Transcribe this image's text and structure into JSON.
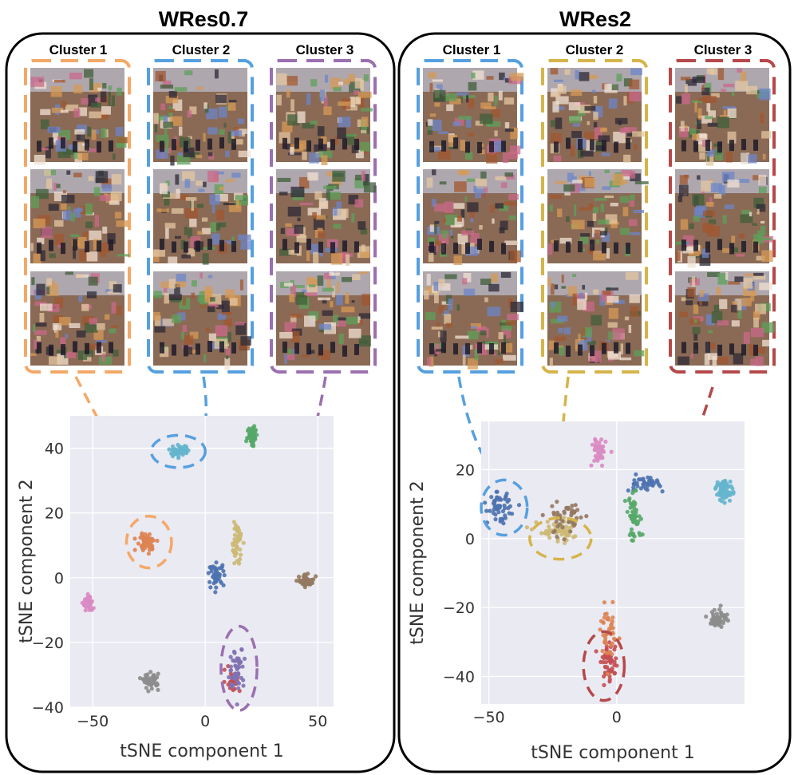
{
  "colors": {
    "plot_bg": "#eaeaf2",
    "grid": "#ffffff",
    "tab_blue": "#4c72b0",
    "tab_orange": "#dd8452",
    "tab_green": "#55a868",
    "tab_red": "#c44e52",
    "tab_purple": "#8172b3",
    "tab_brown": "#937860",
    "tab_pink": "#da8bc3",
    "tab_gray": "#8c8c8c",
    "tab_olive": "#ccb974",
    "tab_cyan": "#64b5cd"
  },
  "panels": [
    {
      "title": "WRes0.7",
      "cluster_labels": [
        "Cluster 1",
        "Cluster 2",
        "Cluster 3"
      ],
      "cluster_colors": [
        "#f4a868",
        "#56a0e0",
        "#9b6fb0"
      ],
      "image_icon": "synthesized-castle-image"
    },
    {
      "title": "WRes2",
      "cluster_labels": [
        "Cluster 1",
        "Cluster 2",
        "Cluster 3"
      ],
      "cluster_colors": [
        "#56a0e0",
        "#d6b44a",
        "#b5494a"
      ],
      "image_icon": "synthesized-castle-image"
    }
  ],
  "chart_data": [
    {
      "type": "scatter",
      "title": "WRes0.7",
      "xlabel": "tSNE component 1",
      "ylabel": "tSNE component 2",
      "xlim": [
        -60,
        57
      ],
      "ylim": [
        -40,
        50
      ],
      "xticks": [
        -50,
        0,
        50
      ],
      "xtick_labels": [
        "−50",
        "0",
        "50"
      ],
      "yticks": [
        -40,
        -20,
        0,
        20,
        40
      ],
      "ytick_labels": [
        "−40",
        "−20",
        "0",
        "20",
        "40"
      ],
      "grid": true,
      "clusters": [
        {
          "color": "tab_blue",
          "center": [
            5,
            1
          ],
          "spread": [
            3,
            3
          ],
          "count": 45
        },
        {
          "color": "tab_orange",
          "center": [
            -26,
            11
          ],
          "spread": [
            4,
            2.5
          ],
          "count": 55
        },
        {
          "color": "tab_green",
          "center": [
            21,
            44
          ],
          "spread": [
            2,
            3
          ],
          "count": 55
        },
        {
          "color": "tab_red",
          "center": [
            12,
            -32
          ],
          "spread": [
            3,
            3
          ],
          "count": 30
        },
        {
          "color": "tab_purple",
          "center": [
            14,
            -28
          ],
          "spread": [
            3,
            6
          ],
          "count": 55
        },
        {
          "color": "tab_brown",
          "center": [
            45,
            -1
          ],
          "spread": [
            3,
            1.5
          ],
          "count": 50
        },
        {
          "color": "tab_pink",
          "center": [
            -52,
            -8
          ],
          "spread": [
            2,
            2.5
          ],
          "count": 50
        },
        {
          "color": "tab_gray",
          "center": [
            -24,
            -32
          ],
          "spread": [
            3,
            2
          ],
          "count": 50
        },
        {
          "color": "tab_olive",
          "center": [
            14,
            11
          ],
          "spread": [
            2,
            6
          ],
          "count": 50
        },
        {
          "color": "tab_cyan",
          "center": [
            -12,
            39
          ],
          "spread": [
            4,
            1.5
          ],
          "count": 45
        }
      ],
      "highlight_ellipses": [
        {
          "cluster": "Cluster 2",
          "center": [
            -12,
            39
          ],
          "radii": [
            12,
            5
          ],
          "color": "#56a0e0"
        },
        {
          "cluster": "Cluster 1",
          "center": [
            -25,
            11
          ],
          "radii": [
            10,
            8
          ],
          "color": "#f4a868"
        },
        {
          "cluster": "Cluster 3",
          "center": [
            15,
            -28
          ],
          "radii": [
            8,
            13
          ],
          "color": "#9b6fb0"
        }
      ]
    },
    {
      "type": "scatter",
      "title": "WRes2",
      "xlabel": "tSNE component 1",
      "ylabel": "tSNE component 2",
      "xlim": [
        -53,
        50
      ],
      "ylim": [
        -48,
        34
      ],
      "xticks": [
        -50,
        0
      ],
      "xtick_labels": [
        "−50",
        "0"
      ],
      "yticks": [
        -40,
        -20,
        0,
        20
      ],
      "ytick_labels": [
        "−40",
        "−20",
        "0",
        "20"
      ],
      "grid": true,
      "clusters": [
        {
          "color": "tab_blue",
          "center": [
            -46,
            9
          ],
          "spread": [
            4,
            4
          ],
          "count": 55
        },
        {
          "color": "tab_olive",
          "center": [
            -22,
            2
          ],
          "spread": [
            8,
            3
          ],
          "count": 60
        },
        {
          "color": "tab_brown",
          "center": [
            -20,
            6
          ],
          "spread": [
            7,
            5
          ],
          "count": 45
        },
        {
          "color": "tab_pink",
          "center": [
            -7,
            25
          ],
          "spread": [
            2.5,
            4
          ],
          "count": 45
        },
        {
          "color": "tab_blue",
          "center": [
            10,
            16
          ],
          "spread": [
            6,
            2
          ],
          "count": 40
        },
        {
          "color": "tab_green",
          "center": [
            7,
            6
          ],
          "spread": [
            3,
            6
          ],
          "count": 50
        },
        {
          "color": "tab_cyan",
          "center": [
            42,
            14
          ],
          "spread": [
            3,
            3
          ],
          "count": 55
        },
        {
          "color": "tab_gray",
          "center": [
            40,
            -23
          ],
          "spread": [
            3,
            2.5
          ],
          "count": 55
        },
        {
          "color": "tab_red",
          "center": [
            -3,
            -36
          ],
          "spread": [
            3,
            5
          ],
          "count": 55
        },
        {
          "color": "tab_orange",
          "center": [
            -3,
            -28
          ],
          "spread": [
            3,
            7
          ],
          "count": 40
        }
      ],
      "highlight_ellipses": [
        {
          "cluster": "Cluster 1",
          "center": [
            -44,
            9
          ],
          "radii": [
            9,
            8
          ],
          "color": "#56a0e0"
        },
        {
          "cluster": "Cluster 2",
          "center": [
            -22,
            0
          ],
          "radii": [
            12,
            6
          ],
          "color": "#d6b44a"
        },
        {
          "cluster": "Cluster 3",
          "center": [
            -5,
            -37
          ],
          "radii": [
            8,
            10
          ],
          "color": "#b5494a"
        }
      ]
    }
  ]
}
